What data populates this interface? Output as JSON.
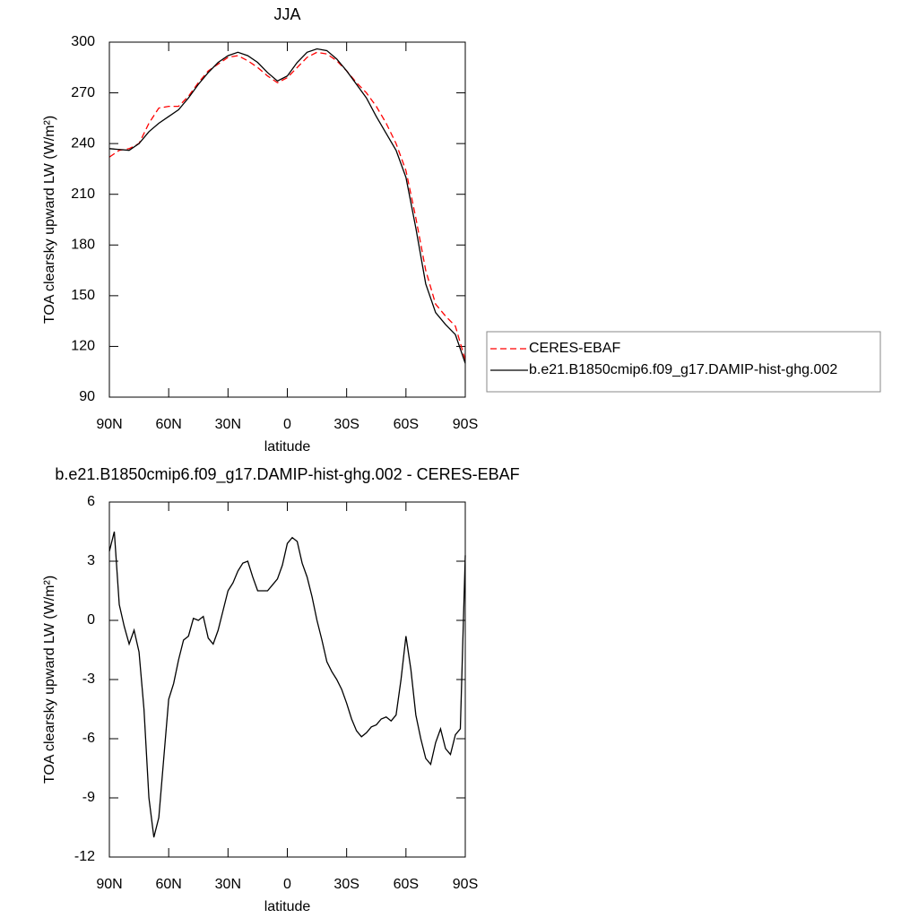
{
  "chart_data": [
    {
      "type": "line",
      "title": "JJA",
      "x_label": "latitude",
      "y_label": "TOA clearsky upward LW (W/m²)",
      "x": [
        90,
        85,
        80,
        75,
        70,
        65,
        60,
        55,
        50,
        45,
        40,
        35,
        30,
        25,
        20,
        15,
        10,
        5,
        0,
        -5,
        -10,
        -15,
        -20,
        -25,
        -30,
        -35,
        -40,
        -45,
        -50,
        -55,
        -60,
        -65,
        -70,
        -75,
        -80,
        -85,
        -90
      ],
      "series": [
        {
          "name": "CERES-EBAF",
          "color": "#ff0000",
          "linestyle": "dashed",
          "values": [
            232,
            236,
            237,
            240,
            252,
            261,
            262,
            262,
            268,
            276,
            283,
            287,
            291,
            292,
            289,
            285,
            280,
            276,
            279,
            285,
            291,
            294,
            293,
            289,
            283,
            276,
            270,
            262,
            252,
            240,
            224,
            196,
            165,
            145,
            138,
            132,
            112
          ]
        },
        {
          "name": "b.e21.B1850cmip6.f09_g17.DAMIP-hist-ghg.002",
          "color": "#000000",
          "linestyle": "solid",
          "values": [
            237,
            236.5,
            236,
            240,
            247,
            252,
            256,
            260,
            267,
            275,
            282,
            288,
            292,
            294,
            292,
            288,
            282,
            277,
            280,
            288,
            294,
            296,
            295,
            290,
            283,
            275,
            267,
            256,
            246,
            236,
            220,
            190,
            157,
            140,
            133,
            127,
            110
          ]
        }
      ],
      "xlim": [
        90,
        -90
      ],
      "xticks": [
        {
          "value": 90,
          "label": "90N"
        },
        {
          "value": 60,
          "label": "60N"
        },
        {
          "value": 30,
          "label": "30N"
        },
        0,
        {
          "value": -30,
          "label": "30S"
        },
        {
          "value": -60,
          "label": "60S"
        },
        {
          "value": -90,
          "label": "90S"
        }
      ],
      "ylim": [
        90,
        300
      ],
      "yticks": [
        90,
        120,
        150,
        180,
        210,
        240,
        270,
        300
      ],
      "legend": "right"
    },
    {
      "type": "line",
      "title": "b.e21.B1850cmip6.f09_g17.DAMIP-hist-ghg.002 - CERES-EBAF",
      "x_label": "latitude",
      "y_label": "TOA clearsky upward LW (W/m²)",
      "x": [
        90,
        87.5,
        85,
        82.5,
        80,
        77.5,
        75,
        72.5,
        70,
        67.5,
        65,
        62.5,
        60,
        57.5,
        55,
        52.5,
        50,
        47.5,
        45,
        42.5,
        40,
        37.5,
        35,
        32.5,
        30,
        27.5,
        25,
        22.5,
        20,
        17.5,
        15,
        12.5,
        10,
        7.5,
        5,
        2.5,
        0,
        -2.5,
        -5,
        -7.5,
        -10,
        -12.5,
        -15,
        -17.5,
        -20,
        -22.5,
        -25,
        -27.5,
        -30,
        -32.5,
        -35,
        -37.5,
        -40,
        -42.5,
        -45,
        -47.5,
        -50,
        -52.5,
        -55,
        -57.5,
        -60,
        -62.5,
        -65,
        -67.5,
        -70,
        -72.5,
        -75,
        -77.5,
        -80,
        -82.5,
        -85,
        -87.5,
        -90
      ],
      "series": [
        {
          "name": "b.e21.B1850cmip6.f09_g17.DAMIP-hist-ghg.002 - CERES-EBAF",
          "color": "#000000",
          "linestyle": "solid",
          "values": [
            3.5,
            4.5,
            0.8,
            -0.3,
            -1.2,
            -0.5,
            -1.6,
            -4.5,
            -9,
            -11,
            -10,
            -7,
            -4,
            -3.2,
            -2,
            -1,
            -0.8,
            0.1,
            0,
            0.2,
            -0.9,
            -1.2,
            -0.5,
            0.5,
            1.5,
            1.9,
            2.5,
            2.9,
            3,
            2.2,
            1.5,
            1.5,
            1.5,
            1.8,
            2.1,
            2.8,
            3.9,
            4.2,
            4,
            2.9,
            2.2,
            1.2,
            0,
            -1,
            -2.1,
            -2.6,
            -3,
            -3.5,
            -4.2,
            -5,
            -5.6,
            -5.9,
            -5.7,
            -5.4,
            -5.3,
            -5,
            -4.9,
            -5.1,
            -4.8,
            -3,
            -0.8,
            -2.5,
            -4.8,
            -6,
            -7,
            -7.3,
            -6.2,
            -5.5,
            -6.5,
            -6.8,
            -5.8,
            -5.5,
            3.3
          ]
        }
      ],
      "xlim": [
        90,
        -90
      ],
      "xticks": [
        {
          "value": 90,
          "label": "90N"
        },
        {
          "value": 60,
          "label": "60N"
        },
        {
          "value": 30,
          "label": "30N"
        },
        0,
        {
          "value": -30,
          "label": "30S"
        },
        {
          "value": -60,
          "label": "60S"
        },
        {
          "value": -90,
          "label": "90S"
        }
      ],
      "ylim": [
        -12,
        6
      ],
      "yticks": [
        -12,
        -9,
        -6,
        -3,
        0,
        3,
        6
      ]
    }
  ]
}
